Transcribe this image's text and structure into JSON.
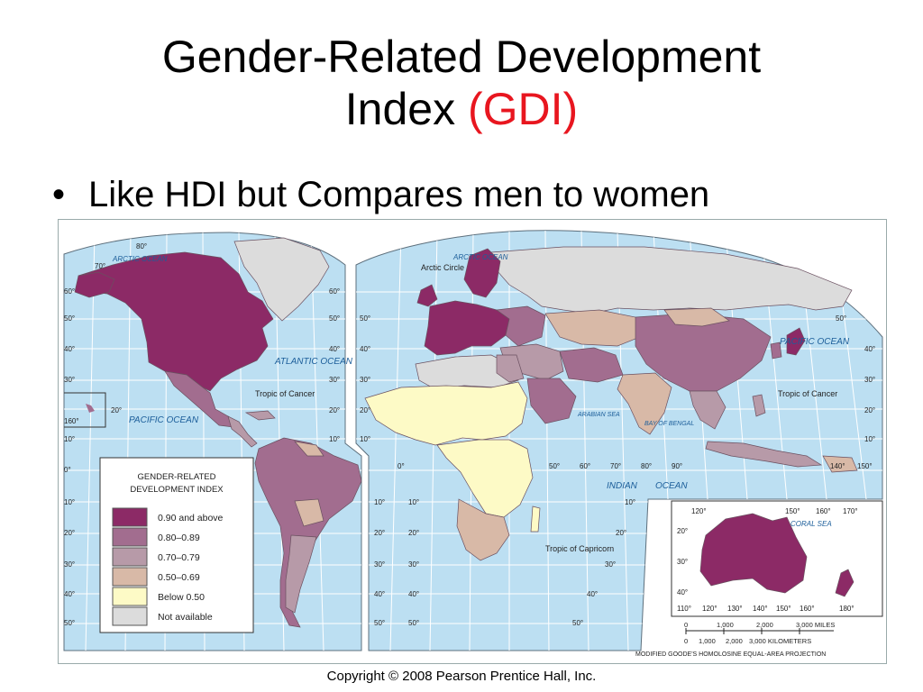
{
  "slide": {
    "title_main": "Gender-Related Development",
    "title_line2": "Index",
    "title_accent": "(GDI)",
    "bullet": "Like HDI but Compares men to women",
    "copyright": "Copyright © 2008 Pearson Prentice Hall, Inc."
  },
  "colors": {
    "ocean": "#bcdff2",
    "c090": "#8c2a66",
    "c080": "#a26d8f",
    "c070": "#b79aa8",
    "c050": "#d8b9a7",
    "below050": "#fdfac6",
    "na": "#dcdcdc",
    "title_accent": "#e8161f"
  },
  "map": {
    "oceans": {
      "arctic_left": "ARCTIC OCEAN",
      "arctic_right": "ARCTIC OCEAN",
      "atlantic": "ATLANTIC OCEAN",
      "pacific_left": "PACIFIC OCEAN",
      "pacific_right": "PACIFIC OCEAN",
      "indian_1": "INDIAN",
      "indian_2": "OCEAN",
      "arabian": "ARABIAN SEA",
      "bengal": "BAY OF BENGAL",
      "coral": "CORAL SEA"
    },
    "lines": {
      "arctic_circle": "Arctic Circle",
      "tropic_cancer_left": "Tropic of Cancer",
      "tropic_cancer_right": "Tropic of Cancer",
      "tropic_capricorn": "Tropic of Capricorn"
    },
    "lat_left": [
      "80°",
      "70°",
      "60°",
      "50°",
      "40°",
      "30°",
      "20°",
      "10°",
      "0°",
      "10°",
      "20°",
      "30°",
      "40°",
      "50°"
    ],
    "lat_mid_left": [
      "60°",
      "50°",
      "40°",
      "30°",
      "20°",
      "10°"
    ],
    "lat_mid": [
      "50°",
      "40°",
      "30°",
      "20°",
      "10°",
      "0°",
      "10°",
      "20°",
      "30°",
      "40°",
      "50°"
    ],
    "lat_mid2": [
      "10°",
      "20°",
      "30°",
      "40°",
      "50°"
    ],
    "lat_right": [
      "50°",
      "40°",
      "30°",
      "20°",
      "10°"
    ],
    "inset_hawaii_lon": "160°",
    "lon_labels_bottom": [
      "50°",
      "60°",
      "70°",
      "80°",
      "90°"
    ],
    "lon_right_labels": [
      "140°",
      "150°"
    ],
    "indian_lat": [
      "10°",
      "20°",
      "30°",
      "40°",
      "50°"
    ]
  },
  "legend": {
    "title_line1": "GENDER-RELATED",
    "title_line2": "DEVELOPMENT INDEX",
    "items": [
      {
        "label": "0.90 and above",
        "color": "#8c2a66"
      },
      {
        "label": "0.80–0.89",
        "color": "#a26d8f"
      },
      {
        "label": "0.70–0.79",
        "color": "#b79aa8"
      },
      {
        "label": "0.50–0.69",
        "color": "#d8b9a7"
      },
      {
        "label": "Below 0.50",
        "color": "#fdfac6"
      },
      {
        "label": "Not available",
        "color": "#dcdcdc"
      }
    ]
  },
  "inset_australia": {
    "lon_top": [
      "120°",
      "150°",
      "160°",
      "170°"
    ],
    "lat": [
      "20°",
      "30°",
      "40°"
    ],
    "lon_bottom": [
      "110°",
      "120°",
      "130°",
      "140°",
      "150°",
      "160°",
      "180°"
    ]
  },
  "scale": {
    "miles": [
      "0",
      "1,000",
      "2,000",
      "3,000 MILES"
    ],
    "km": [
      "0",
      "1,000",
      "2,000",
      "3,000 KILOMETERS"
    ],
    "projection": "MODIFIED GOODE'S HOMOLOSINE EQUAL-AREA PROJECTION"
  }
}
